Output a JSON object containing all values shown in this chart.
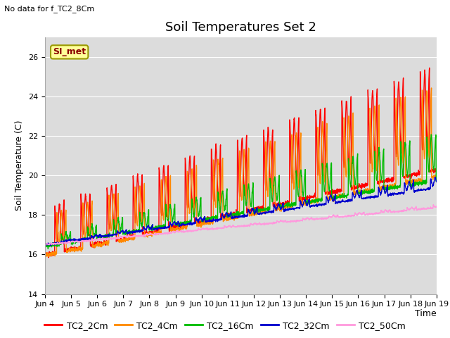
{
  "title": "Soil Temperatures Set 2",
  "no_data_label": "No data for f_TC2_8Cm",
  "si_met_label": "SI_met",
  "xlabel": "Time",
  "ylabel": "Soil Temperature (C)",
  "ylim": [
    14,
    27
  ],
  "yticks": [
    14,
    16,
    18,
    20,
    22,
    24,
    26
  ],
  "x_tick_labels": [
    "Jun 4",
    "Jun 5",
    "Jun 6",
    "Jun 7",
    "Jun 8",
    "Jun 9",
    "Jun 10",
    "Jun 11",
    "Jun 12",
    "Jun 13",
    "Jun 14",
    "Jun 15",
    "Jun 16",
    "Jun 17",
    "Jun 18",
    "Jun 19"
  ],
  "series_colors": {
    "TC2_2Cm": "#FF0000",
    "TC2_4Cm": "#FF8800",
    "TC2_16Cm": "#00BB00",
    "TC2_32Cm": "#0000CC",
    "TC2_50Cm": "#FF99DD"
  },
  "plot_bg_color": "#DCDCDC",
  "title_fontsize": 13,
  "axis_label_fontsize": 9,
  "tick_fontsize": 8,
  "legend_fontsize": 9,
  "n_days": 15,
  "n_points_per_day": 144,
  "base_starts": [
    16.5,
    16.4,
    16.5,
    16.5,
    16.5
  ],
  "base_ends": [
    21.5,
    21.0,
    20.3,
    19.5,
    18.4
  ],
  "amp_starts": [
    1.8,
    1.5,
    0.3,
    0.05,
    0.02
  ],
  "amp_ends": [
    4.0,
    3.5,
    1.8,
    0.4,
    0.1
  ],
  "phases": [
    0.0,
    0.08,
    0.25,
    0.4,
    0.5
  ],
  "seed": 0
}
